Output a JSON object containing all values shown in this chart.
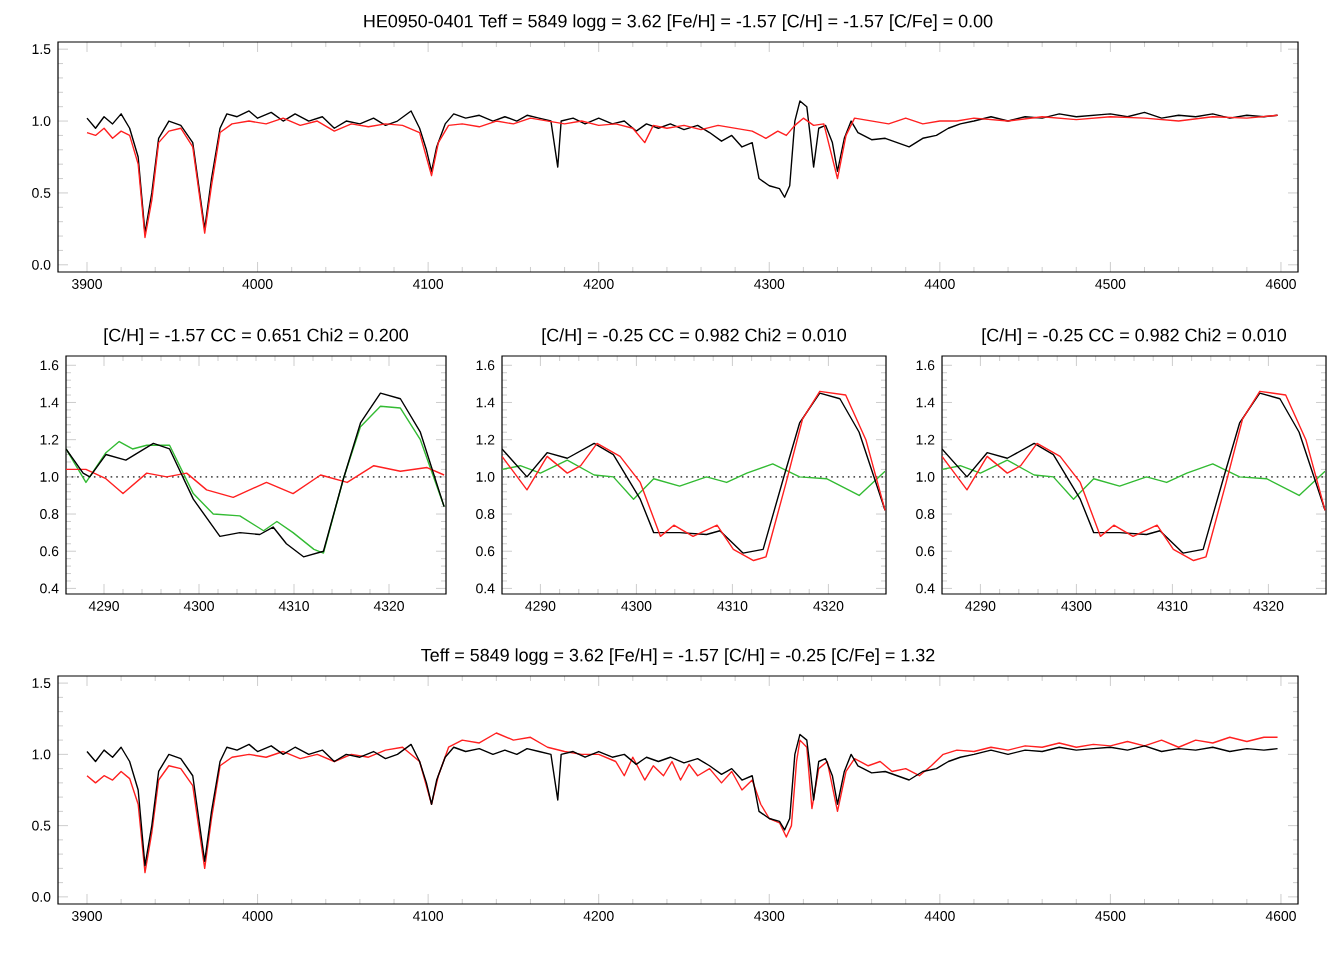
{
  "chart_data": [
    {
      "type": "line",
      "title": "HE0950-0401   Teff = 5849  logg = 3.62  [Fe/H] = -1.57  [C/H] = -1.57  [C/Fe] =  0.00",
      "xlim": [
        3883,
        4610
      ],
      "xticks": [
        3900,
        4000,
        4100,
        4200,
        4300,
        4400,
        4500,
        4600
      ],
      "ylim": [
        -0.05,
        1.55
      ],
      "yticks": [
        {
          "value": 0,
          "label": "0.0"
        },
        {
          "value": 0.5,
          "label": "0.5"
        },
        {
          "value": 1,
          "label": "1.0"
        },
        {
          "value": 1.5,
          "label": "1.5"
        }
      ],
      "series": [
        {
          "color": "#000000",
          "x": [
            3900,
            3905,
            3910,
            3915,
            3920,
            3925,
            3930,
            3934,
            3938,
            3942,
            3948,
            3955,
            3962,
            3969,
            3973,
            3978,
            3982,
            3988,
            3995,
            4000,
            4008,
            4015,
            4022,
            4030,
            4038,
            4045,
            4052,
            4060,
            4068,
            4075,
            4082,
            4090,
            4095,
            4099,
            4102,
            4105,
            4110,
            4115,
            4122,
            4130,
            4138,
            4145,
            4152,
            4158,
            4165,
            4172,
            4176,
            4178,
            4185,
            4192,
            4200,
            4208,
            4215,
            4222,
            4228,
            4235,
            4242,
            4250,
            4258,
            4265,
            4272,
            4278,
            4284,
            4290,
            4294,
            4300,
            4306,
            4309,
            4312,
            4315,
            4318,
            4322,
            4324,
            4326,
            4329,
            4333,
            4337,
            4340,
            4344,
            4348,
            4352,
            4360,
            4368,
            4375,
            4382,
            4390,
            4398,
            4405,
            4412,
            4420,
            4430,
            4440,
            4450,
            4460,
            4470,
            4480,
            4490,
            4500,
            4510,
            4520,
            4530,
            4540,
            4550,
            4560,
            4570,
            4580,
            4590,
            4598
          ],
          "values": [
            1.02,
            0.95,
            1.03,
            0.98,
            1.05,
            0.95,
            0.75,
            0.22,
            0.5,
            0.88,
            1.0,
            0.97,
            0.85,
            0.25,
            0.6,
            0.95,
            1.05,
            1.03,
            1.07,
            1.02,
            1.06,
            1.0,
            1.05,
            1.0,
            1.03,
            0.95,
            1.0,
            0.98,
            1.02,
            0.97,
            1.0,
            1.07,
            0.95,
            0.8,
            0.65,
            0.82,
            0.98,
            1.05,
            1.02,
            1.04,
            1.0,
            1.03,
            1.0,
            1.04,
            1.02,
            1.0,
            0.68,
            1.0,
            1.02,
            0.98,
            1.02,
            0.98,
            1.0,
            0.93,
            0.98,
            0.95,
            0.98,
            0.94,
            0.97,
            0.92,
            0.86,
            0.9,
            0.82,
            0.85,
            0.6,
            0.55,
            0.53,
            0.47,
            0.55,
            1.0,
            1.14,
            1.1,
            0.9,
            0.68,
            0.95,
            0.97,
            0.85,
            0.65,
            0.88,
            1.0,
            0.92,
            0.87,
            0.88,
            0.85,
            0.82,
            0.88,
            0.9,
            0.95,
            0.98,
            1.0,
            1.03,
            1.0,
            1.03,
            1.02,
            1.05,
            1.03,
            1.04,
            1.05,
            1.03,
            1.06,
            1.02,
            1.04,
            1.03,
            1.05,
            1.02,
            1.04,
            1.03,
            1.04
          ]
        },
        {
          "color": "#ff2020",
          "x": [
            3900,
            3905,
            3910,
            3915,
            3920,
            3925,
            3930,
            3934,
            3938,
            3942,
            3948,
            3955,
            3962,
            3969,
            3973,
            3978,
            3985,
            3995,
            4005,
            4015,
            4025,
            4035,
            4045,
            4055,
            4065,
            4075,
            4085,
            4095,
            4102,
            4106,
            4112,
            4120,
            4130,
            4140,
            4150,
            4160,
            4170,
            4180,
            4190,
            4200,
            4210,
            4220,
            4227,
            4232,
            4240,
            4250,
            4260,
            4270,
            4280,
            4290,
            4298,
            4305,
            4310,
            4315,
            4320,
            4326,
            4332,
            4340,
            4345,
            4350,
            4360,
            4370,
            4380,
            4390,
            4400,
            4410,
            4420,
            4440,
            4460,
            4480,
            4500,
            4520,
            4540,
            4560,
            4580,
            4598
          ],
          "values": [
            0.92,
            0.9,
            0.95,
            0.88,
            0.93,
            0.9,
            0.7,
            0.19,
            0.45,
            0.85,
            0.93,
            0.95,
            0.82,
            0.22,
            0.55,
            0.92,
            0.98,
            1.0,
            0.98,
            1.02,
            0.97,
            1.0,
            0.93,
            0.98,
            0.96,
            0.98,
            0.97,
            0.92,
            0.62,
            0.85,
            0.97,
            0.98,
            0.96,
            1.0,
            0.98,
            1.02,
            1.0,
            0.98,
            1.0,
            0.97,
            0.98,
            0.95,
            0.85,
            0.97,
            0.95,
            0.97,
            0.94,
            0.97,
            0.95,
            0.93,
            0.88,
            0.93,
            0.9,
            0.97,
            1.02,
            0.97,
            0.98,
            0.6,
            0.9,
            1.02,
            1.0,
            0.98,
            1.02,
            0.98,
            1.0,
            1.0,
            1.02,
            1.0,
            1.03,
            1.01,
            1.03,
            1.02,
            1.0,
            1.03,
            1.02,
            1.04
          ]
        }
      ]
    },
    {
      "type": "line",
      "title": "[C/H] = -1.57  CC = 0.651  Chi2 = 0.200",
      "xlim": [
        4286,
        4326
      ],
      "xticks": [
        4290,
        4300,
        4310,
        4320
      ],
      "ylim": [
        0.37,
        1.65
      ],
      "yticks": [
        {
          "value": 0.4,
          "label": "0.4"
        },
        {
          "value": 0.6,
          "label": "0.6"
        },
        {
          "value": 0.8,
          "label": "0.8"
        },
        {
          "value": 1,
          "label": "1.0"
        },
        {
          "value": 1.2,
          "label": "1.2"
        },
        {
          "value": 1.4,
          "label": "1.4"
        },
        {
          "value": 1.6,
          "label": "1.6"
        }
      ],
      "ref_lines": [
        {
          "axis": "y",
          "value": 1,
          "color": "#555555",
          "line_style": "dotted"
        }
      ],
      "series": [
        {
          "color": "#33bb33",
          "x": [
            4286.0,
            4288.1,
            4290.2,
            4291.6,
            4293.0,
            4294.5,
            4296.9,
            4299.4,
            4301.5,
            4304.3,
            4306.8,
            4308.2,
            4309.9,
            4312.1,
            4313.1,
            4315.2,
            4317.0,
            4319.1,
            4321.2,
            4323.3,
            4325.8
          ],
          "values": [
            1.15,
            0.97,
            1.13,
            1.19,
            1.15,
            1.17,
            1.17,
            0.91,
            0.8,
            0.79,
            0.71,
            0.76,
            0.7,
            0.61,
            0.59,
            0.99,
            1.27,
            1.38,
            1.37,
            1.2,
            0.84
          ]
        },
        {
          "color": "#ff2020",
          "x": [
            4286.0,
            4288.1,
            4290.2,
            4292.0,
            4294.5,
            4296.6,
            4298.7,
            4300.8,
            4303.6,
            4307.1,
            4309.9,
            4312.8,
            4315.6,
            4318.4,
            4321.2,
            4324.0,
            4325.8
          ],
          "values": [
            1.04,
            1.04,
            0.99,
            0.91,
            1.02,
            1.0,
            1.02,
            0.93,
            0.89,
            0.97,
            0.91,
            1.01,
            0.97,
            1.06,
            1.03,
            1.05,
            1.01
          ]
        },
        {
          "color": "#000000",
          "x": [
            4286.0,
            4287.8,
            4288.5,
            4290.2,
            4292.3,
            4295.2,
            4296.9,
            4299.4,
            4302.2,
            4304.3,
            4306.4,
            4307.8,
            4309.2,
            4311.0,
            4313.1,
            4315.2,
            4317.0,
            4319.1,
            4321.2,
            4323.3,
            4325.8
          ],
          "values": [
            1.15,
            1.02,
            1.0,
            1.12,
            1.09,
            1.18,
            1.15,
            0.88,
            0.68,
            0.7,
            0.69,
            0.73,
            0.64,
            0.57,
            0.6,
            0.99,
            1.29,
            1.45,
            1.42,
            1.24,
            0.84
          ]
        }
      ]
    },
    {
      "type": "line",
      "title": "[C/H] = -0.25  CC = 0.982  Chi2 = 0.010",
      "xlim": [
        4286,
        4326
      ],
      "xticks": [
        4290,
        4300,
        4310,
        4320
      ],
      "ylim": [
        0.37,
        1.65
      ],
      "yticks": [
        {
          "value": 0.4,
          "label": "0.4"
        },
        {
          "value": 0.6,
          "label": "0.6"
        },
        {
          "value": 0.8,
          "label": "0.8"
        },
        {
          "value": 1,
          "label": "1.0"
        },
        {
          "value": 1.2,
          "label": "1.2"
        },
        {
          "value": 1.4,
          "label": "1.4"
        },
        {
          "value": 1.6,
          "label": "1.6"
        }
      ],
      "ref_lines": [
        {
          "axis": "y",
          "value": 1,
          "color": "#555555",
          "line_style": "dotted"
        }
      ],
      "series": [
        {
          "color": "#33bb33",
          "x": [
            4286.0,
            4287.9,
            4290.0,
            4292.8,
            4295.6,
            4297.6,
            4299.7,
            4301.8,
            4304.5,
            4307.3,
            4309.4,
            4311.5,
            4314.2,
            4317.0,
            4319.8,
            4323.2,
            4325.9
          ],
          "values": [
            1.04,
            1.06,
            1.02,
            1.09,
            1.01,
            1.0,
            0.88,
            0.99,
            0.95,
            1.0,
            0.97,
            1.02,
            1.07,
            1.0,
            0.99,
            0.9,
            1.03
          ]
        },
        {
          "color": "#000000",
          "x": [
            4286.0,
            4288.6,
            4290.7,
            4292.8,
            4295.6,
            4297.6,
            4300.4,
            4301.8,
            4304.5,
            4307.3,
            4308.7,
            4311.1,
            4313.2,
            4315.3,
            4317.0,
            4319.1,
            4321.2,
            4323.2,
            4325.9
          ],
          "values": [
            1.15,
            1.0,
            1.13,
            1.1,
            1.18,
            1.12,
            0.88,
            0.7,
            0.7,
            0.69,
            0.71,
            0.59,
            0.61,
            0.99,
            1.29,
            1.45,
            1.42,
            1.24,
            0.82
          ]
        },
        {
          "color": "#ff2020",
          "x": [
            4286.0,
            4288.6,
            4290.7,
            4292.8,
            4294.2,
            4295.9,
            4298.3,
            4300.4,
            4302.5,
            4303.9,
            4305.9,
            4308.4,
            4310.1,
            4312.2,
            4313.5,
            4315.6,
            4317.3,
            4319.1,
            4321.8,
            4323.9,
            4325.9
          ],
          "values": [
            1.11,
            0.93,
            1.11,
            1.02,
            1.06,
            1.18,
            1.11,
            0.97,
            0.68,
            0.74,
            0.68,
            0.74,
            0.61,
            0.55,
            0.57,
            0.97,
            1.31,
            1.46,
            1.44,
            1.2,
            0.82
          ]
        }
      ]
    },
    {
      "type": "line",
      "title": "[C/H] = -0.25  CC = 0.982  Chi2 = 0.010",
      "xlim": [
        4286,
        4326
      ],
      "xticks": [
        4290,
        4300,
        4310,
        4320
      ],
      "ylim": [
        0.37,
        1.65
      ],
      "yticks": [
        {
          "value": 0.4,
          "label": "0.4"
        },
        {
          "value": 0.6,
          "label": "0.6"
        },
        {
          "value": 0.8,
          "label": "0.8"
        },
        {
          "value": 1,
          "label": "1.0"
        },
        {
          "value": 1.2,
          "label": "1.2"
        },
        {
          "value": 1.4,
          "label": "1.4"
        },
        {
          "value": 1.6,
          "label": "1.6"
        }
      ],
      "ref_lines": [
        {
          "axis": "y",
          "value": 1,
          "color": "#555555",
          "line_style": "dotted"
        }
      ],
      "series": [
        {
          "color": "#33bb33",
          "x": [
            4286.0,
            4287.9,
            4290.0,
            4292.8,
            4295.6,
            4297.6,
            4299.7,
            4301.8,
            4304.5,
            4307.3,
            4309.4,
            4311.5,
            4314.2,
            4317.0,
            4319.8,
            4323.2,
            4325.9
          ],
          "values": [
            1.04,
            1.06,
            1.02,
            1.09,
            1.01,
            1.0,
            0.88,
            0.99,
            0.95,
            1.0,
            0.97,
            1.02,
            1.07,
            1.0,
            0.99,
            0.9,
            1.03
          ]
        },
        {
          "color": "#000000",
          "x": [
            4286.0,
            4288.6,
            4290.7,
            4292.8,
            4295.6,
            4297.6,
            4300.4,
            4301.8,
            4304.5,
            4307.3,
            4308.7,
            4311.1,
            4313.2,
            4315.3,
            4317.0,
            4319.1,
            4321.2,
            4323.2,
            4325.9
          ],
          "values": [
            1.15,
            1.0,
            1.13,
            1.1,
            1.18,
            1.12,
            0.88,
            0.7,
            0.7,
            0.69,
            0.71,
            0.59,
            0.61,
            0.99,
            1.29,
            1.45,
            1.42,
            1.24,
            0.82
          ]
        },
        {
          "color": "#ff2020",
          "x": [
            4286.0,
            4288.6,
            4290.7,
            4292.8,
            4294.2,
            4295.9,
            4298.3,
            4300.4,
            4302.5,
            4303.9,
            4305.9,
            4308.4,
            4310.1,
            4312.2,
            4313.5,
            4315.6,
            4317.3,
            4319.1,
            4321.8,
            4323.9,
            4325.9
          ],
          "values": [
            1.11,
            0.93,
            1.11,
            1.02,
            1.06,
            1.18,
            1.11,
            0.97,
            0.68,
            0.74,
            0.68,
            0.74,
            0.61,
            0.55,
            0.57,
            0.97,
            1.31,
            1.46,
            1.44,
            1.2,
            0.82
          ]
        }
      ]
    },
    {
      "type": "line",
      "title": "Teff = 5849  logg =  3.62  [Fe/H] = -1.57  [C/H] = -0.25  [C/Fe] =  1.32",
      "xlim": [
        3883,
        4610
      ],
      "xticks": [
        3900,
        4000,
        4100,
        4200,
        4300,
        4400,
        4500,
        4600
      ],
      "ylim": [
        -0.05,
        1.55
      ],
      "yticks": [
        {
          "value": 0,
          "label": "0.0"
        },
        {
          "value": 0.5,
          "label": "0.5"
        },
        {
          "value": 1,
          "label": "1.0"
        },
        {
          "value": 1.5,
          "label": "1.5"
        }
      ],
      "series": [
        {
          "color": "#ff2020",
          "x": [
            3900,
            3905,
            3910,
            3915,
            3920,
            3925,
            3930,
            3934,
            3938,
            3942,
            3948,
            3955,
            3962,
            3969,
            3973,
            3978,
            3985,
            3995,
            4005,
            4015,
            4025,
            4035,
            4045,
            4055,
            4065,
            4075,
            4085,
            4095,
            4102,
            4106,
            4112,
            4120,
            4130,
            4140,
            4150,
            4160,
            4170,
            4180,
            4190,
            4200,
            4210,
            4215,
            4220,
            4227,
            4232,
            4238,
            4243,
            4248,
            4253,
            4258,
            4265,
            4272,
            4278,
            4284,
            4290,
            4295,
            4300,
            4306,
            4310,
            4313,
            4316,
            4318,
            4322,
            4325,
            4329,
            4334,
            4340,
            4345,
            4350,
            4358,
            4365,
            4372,
            4380,
            4388,
            4395,
            4402,
            4410,
            4420,
            4430,
            4440,
            4450,
            4460,
            4470,
            4480,
            4490,
            4500,
            4510,
            4520,
            4530,
            4540,
            4550,
            4560,
            4570,
            4580,
            4590,
            4598
          ],
          "values": [
            0.85,
            0.8,
            0.85,
            0.82,
            0.88,
            0.83,
            0.65,
            0.17,
            0.45,
            0.82,
            0.92,
            0.9,
            0.78,
            0.2,
            0.55,
            0.92,
            0.98,
            1.0,
            0.98,
            1.02,
            0.97,
            1.0,
            0.95,
            1.0,
            0.98,
            1.03,
            1.05,
            0.95,
            0.65,
            0.85,
            1.05,
            1.1,
            1.08,
            1.15,
            1.1,
            1.12,
            1.05,
            1.02,
            1.0,
            1.0,
            0.95,
            0.85,
            0.98,
            0.82,
            0.92,
            0.85,
            0.95,
            0.82,
            0.93,
            0.85,
            0.9,
            0.8,
            0.88,
            0.75,
            0.82,
            0.65,
            0.55,
            0.52,
            0.42,
            0.5,
            0.95,
            1.1,
            1.05,
            0.62,
            0.9,
            0.95,
            0.6,
            0.88,
            0.97,
            0.92,
            0.95,
            0.88,
            0.9,
            0.85,
            0.92,
            1.0,
            1.03,
            1.02,
            1.05,
            1.03,
            1.06,
            1.05,
            1.08,
            1.05,
            1.07,
            1.06,
            1.09,
            1.06,
            1.1,
            1.05,
            1.1,
            1.08,
            1.12,
            1.09,
            1.12,
            1.12
          ]
        },
        {
          "color": "#000000",
          "x": [
            3900,
            3905,
            3910,
            3915,
            3920,
            3925,
            3930,
            3934,
            3938,
            3942,
            3948,
            3955,
            3962,
            3969,
            3973,
            3978,
            3982,
            3988,
            3995,
            4000,
            4008,
            4015,
            4022,
            4030,
            4038,
            4045,
            4052,
            4060,
            4068,
            4075,
            4082,
            4090,
            4095,
            4099,
            4102,
            4105,
            4110,
            4115,
            4122,
            4130,
            4138,
            4145,
            4152,
            4158,
            4165,
            4172,
            4176,
            4178,
            4185,
            4192,
            4200,
            4208,
            4215,
            4222,
            4228,
            4235,
            4242,
            4250,
            4258,
            4265,
            4272,
            4278,
            4284,
            4290,
            4294,
            4300,
            4306,
            4309,
            4312,
            4315,
            4318,
            4322,
            4324,
            4326,
            4329,
            4333,
            4337,
            4340,
            4344,
            4348,
            4352,
            4360,
            4368,
            4375,
            4382,
            4390,
            4398,
            4405,
            4412,
            4420,
            4430,
            4440,
            4450,
            4460,
            4470,
            4480,
            4490,
            4500,
            4510,
            4520,
            4530,
            4540,
            4550,
            4560,
            4570,
            4580,
            4590,
            4598
          ],
          "values": [
            1.02,
            0.95,
            1.03,
            0.98,
            1.05,
            0.95,
            0.75,
            0.22,
            0.5,
            0.88,
            1.0,
            0.97,
            0.85,
            0.25,
            0.6,
            0.95,
            1.05,
            1.03,
            1.07,
            1.02,
            1.06,
            1.0,
            1.05,
            1.0,
            1.03,
            0.95,
            1.0,
            0.98,
            1.02,
            0.97,
            1.0,
            1.07,
            0.95,
            0.8,
            0.65,
            0.82,
            0.98,
            1.05,
            1.02,
            1.04,
            1.0,
            1.03,
            1.0,
            1.04,
            1.02,
            1.0,
            0.68,
            1.0,
            1.02,
            0.98,
            1.02,
            0.98,
            1.0,
            0.93,
            0.98,
            0.95,
            0.98,
            0.94,
            0.97,
            0.92,
            0.86,
            0.9,
            0.82,
            0.85,
            0.6,
            0.55,
            0.53,
            0.47,
            0.55,
            1.0,
            1.14,
            1.1,
            0.9,
            0.68,
            0.95,
            0.97,
            0.85,
            0.65,
            0.88,
            1.0,
            0.92,
            0.87,
            0.88,
            0.85,
            0.82,
            0.88,
            0.9,
            0.95,
            0.98,
            1.0,
            1.03,
            1.0,
            1.03,
            1.02,
            1.05,
            1.03,
            1.04,
            1.05,
            1.03,
            1.06,
            1.02,
            1.04,
            1.03,
            1.05,
            1.02,
            1.04,
            1.03,
            1.04
          ]
        }
      ]
    }
  ]
}
